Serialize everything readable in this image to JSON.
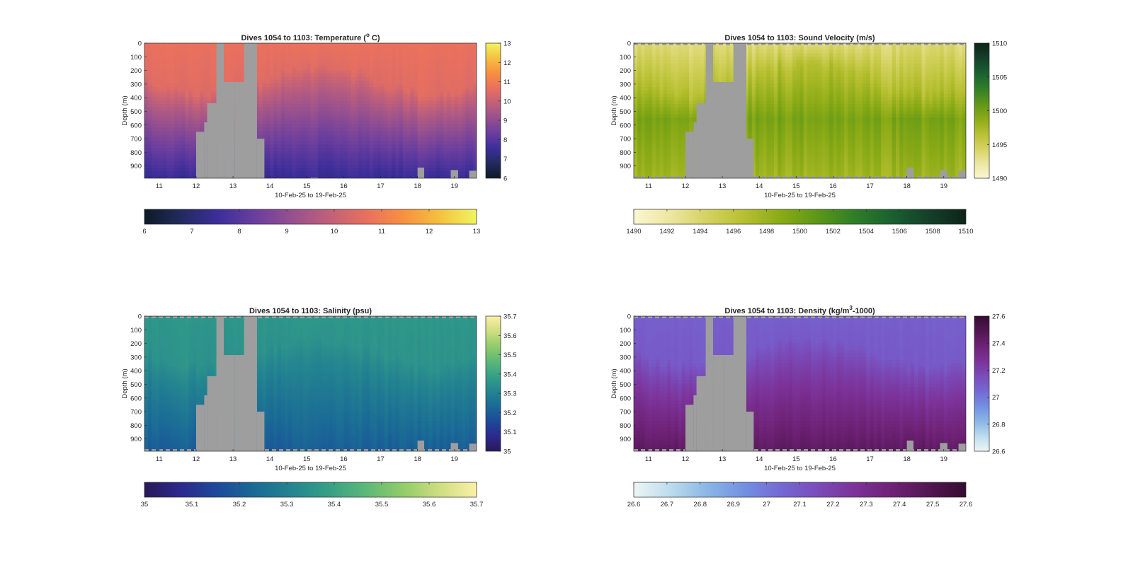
{
  "figure": {
    "background": "#ffffff",
    "panels_layout": "2x2"
  },
  "chart_data": [
    {
      "type": "heatmap",
      "title_prefix": "Dives 1054 to 1103: Temperature (",
      "title_sup": "o",
      "title_suffix": " C)",
      "xlabel": "10-Feb-25 to 19-Feb-25",
      "ylabel": "Depth (m)",
      "x_ticks": [
        "11",
        "12",
        "13",
        "14",
        "15",
        "16",
        "17",
        "18",
        "19"
      ],
      "x_range": [
        10.6,
        19.6
      ],
      "y_ticks": [
        "0",
        "100",
        "200",
        "300",
        "400",
        "500",
        "600",
        "700",
        "800",
        "900"
      ],
      "y_range": [
        0,
        990
      ],
      "colorbar_ticks": [
        "6",
        "7",
        "8",
        "9",
        "10",
        "11",
        "12",
        "13"
      ],
      "colorbar_range": [
        6,
        13
      ],
      "bottom_colorbar_ticks": [
        "6",
        "7",
        "8",
        "9",
        "10",
        "11",
        "12",
        "13"
      ],
      "colormap": [
        "#0d1a26",
        "#222b5e",
        "#3c2e9a",
        "#6a3e9e",
        "#96508f",
        "#c0607a",
        "#e8705f",
        "#f79040",
        "#f5c040",
        "#f0f560"
      ],
      "nodata_color": "#9e9e9e",
      "surface_value": 10.7,
      "deep_value": 7.4,
      "dashed_edges": false
    },
    {
      "type": "heatmap",
      "title_prefix": "Dives 1054 to 1103: Sound Velocity (m/s)",
      "title_sup": "",
      "title_suffix": "",
      "xlabel": "10-Feb-25 to 19-Feb-25",
      "ylabel": "Depth (m)",
      "x_ticks": [
        "11",
        "12",
        "13",
        "14",
        "15",
        "16",
        "17",
        "18",
        "19"
      ],
      "x_range": [
        10.6,
        19.6
      ],
      "y_ticks": [
        "0",
        "100",
        "200",
        "300",
        "400",
        "500",
        "600",
        "700",
        "800",
        "900"
      ],
      "y_range": [
        0,
        990
      ],
      "colorbar_ticks": [
        "1490",
        "1495",
        "1500",
        "1505",
        "1510"
      ],
      "colorbar_range": [
        1490,
        1510
      ],
      "bottom_colorbar_ticks": [
        "1490",
        "1492",
        "1494",
        "1496",
        "1498",
        "1500",
        "1502",
        "1504",
        "1506",
        "1508",
        "1510"
      ],
      "colormap": [
        "#fbf7d2",
        "#ece6a0",
        "#d4d260",
        "#b6bf30",
        "#8aaa16",
        "#5c9618",
        "#2e7e28",
        "#1a6030",
        "#14402a",
        "#0e2418"
      ],
      "nodata_color": "#9e9e9e",
      "surface_value": 1493.6,
      "deep_value": 1497.6,
      "mid_value": 1499.6,
      "dashed_edges": true
    },
    {
      "type": "heatmap",
      "title_prefix": "Dives 1054 to 1103: Salinity (psu)",
      "title_sup": "",
      "title_suffix": "",
      "xlabel": "10-Feb-25 to 19-Feb-25",
      "ylabel": "Depth (m)",
      "x_ticks": [
        "11",
        "12",
        "13",
        "14",
        "15",
        "16",
        "17",
        "18",
        "19"
      ],
      "x_range": [
        10.6,
        19.6
      ],
      "y_ticks": [
        "0",
        "100",
        "200",
        "300",
        "400",
        "500",
        "600",
        "700",
        "800",
        "900"
      ],
      "y_range": [
        0,
        990
      ],
      "colorbar_ticks": [
        "35",
        "35.1",
        "35.2",
        "35.3",
        "35.4",
        "35.5",
        "35.6",
        "35.7"
      ],
      "colorbar_range": [
        35,
        35.7
      ],
      "bottom_colorbar_ticks": [
        "35",
        "35.1",
        "35.2",
        "35.3",
        "35.4",
        "35.5",
        "35.6",
        "35.7"
      ],
      "colormap": [
        "#2a1858",
        "#2c2a8e",
        "#1d4a9a",
        "#1a6a96",
        "#248590",
        "#35a086",
        "#5cb878",
        "#92cc6a",
        "#cede80",
        "#fbf0a8"
      ],
      "nodata_color": "#9e9e9e",
      "surface_value": 35.36,
      "deep_value": 35.2,
      "dashed_edges": true
    },
    {
      "type": "heatmap",
      "title_prefix": "Dives 1054 to 1103: Density (kg/m",
      "title_sup": "3",
      "title_suffix": "-1000)",
      "xlabel": "10-Feb-25 to 19-Feb-25",
      "ylabel": "Depth (m)",
      "x_ticks": [
        "11",
        "12",
        "13",
        "14",
        "15",
        "16",
        "17",
        "18",
        "19"
      ],
      "x_range": [
        10.6,
        19.6
      ],
      "y_ticks": [
        "0",
        "100",
        "200",
        "300",
        "400",
        "500",
        "600",
        "700",
        "800",
        "900"
      ],
      "y_range": [
        0,
        990
      ],
      "colorbar_ticks": [
        "26.6",
        "26.8",
        "27",
        "27.2",
        "27.4",
        "27.6"
      ],
      "colorbar_range": [
        26.6,
        27.6
      ],
      "bottom_colorbar_ticks": [
        "26.6",
        "26.7",
        "26.8",
        "26.9",
        "27",
        "27.1",
        "27.2",
        "27.3",
        "27.4",
        "27.5",
        "27.6"
      ],
      "colormap": [
        "#edf6f5",
        "#bcdcec",
        "#8ab6e6",
        "#7290e2",
        "#7468d4",
        "#7a4cba",
        "#7c3298",
        "#6e2276",
        "#521652",
        "#360c30"
      ],
      "nodata_color": "#9e9e9e",
      "surface_value": 27.08,
      "deep_value": 27.45,
      "dashed_edges": true
    }
  ],
  "nodata_region": {
    "description_free": true,
    "columns": [
      {
        "x0": 12.0,
        "x1": 12.15,
        "top": 930
      },
      {
        "x0": 12.05,
        "x1": 12.2,
        "top": 930
      },
      {
        "x0": 12.0,
        "x1": 12.22,
        "top": 650
      },
      {
        "x0": 12.22,
        "x1": 12.3,
        "top": 580
      },
      {
        "x0": 12.3,
        "x1": 12.55,
        "top": 440
      },
      {
        "x0": 12.55,
        "x1": 12.75,
        "top": 300
      },
      {
        "x0": 12.55,
        "x1": 12.75,
        "top": 0
      },
      {
        "x0": 12.75,
        "x1": 13.05,
        "top": 285
      },
      {
        "x0": 13.05,
        "x1": 13.4,
        "top": 285
      },
      {
        "x0": 13.3,
        "x1": 13.65,
        "top": 0
      },
      {
        "x0": 13.65,
        "x1": 13.85,
        "top": 700
      }
    ],
    "bottom_bumps": [
      {
        "x0": 12.0,
        "x1": 12.18,
        "top": 940
      },
      {
        "x0": 15.1,
        "x1": 15.3,
        "top": 985
      },
      {
        "x0": 18.0,
        "x1": 18.18,
        "top": 912
      },
      {
        "x0": 18.9,
        "x1": 19.1,
        "top": 930
      },
      {
        "x0": 19.4,
        "x1": 19.6,
        "top": 935
      }
    ]
  }
}
